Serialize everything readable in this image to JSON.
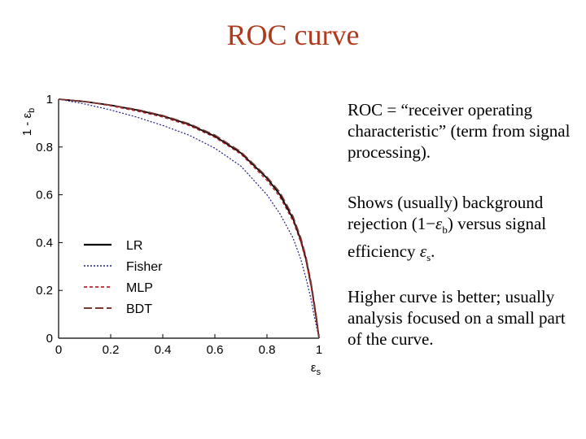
{
  "slide": {
    "title": "ROC curve"
  },
  "text": {
    "p1": "ROC = “receiver operating characteristic” (term from signal processing).",
    "p2_pre": "Shows (usually) background rejection (1−",
    "p2_eps": "ε",
    "p2_sub_b": "b",
    "p2_mid": ") versus signal efficiency ",
    "p2_eps2": "ε",
    "p2_sub_s": "s",
    "p2_post": ".",
    "p3": "Higher curve is better; usually analysis focused on a small part of the curve."
  },
  "colors": {
    "title": "#b03a1e",
    "lr": "#000000",
    "fisher": "#1c1c8c",
    "mlp": "#c0202a",
    "bdt": "#7a3a32"
  },
  "chart_data": {
    "type": "line",
    "title": "",
    "xlabel": "εs",
    "ylabel": "1 - εb",
    "xlim": [
      0,
      1
    ],
    "ylim": [
      0,
      1
    ],
    "xticks": [
      "0",
      "0.2",
      "0.4",
      "0.6",
      "0.8",
      "1"
    ],
    "yticks": [
      "0",
      "0.2",
      "0.4",
      "0.6",
      "0.8",
      "1"
    ],
    "legend_position": "lower-left",
    "series": [
      {
        "name": "LR",
        "style": "solid",
        "x": [
          0,
          0.1,
          0.2,
          0.3,
          0.4,
          0.5,
          0.6,
          0.7,
          0.8,
          0.85,
          0.9,
          0.93,
          0.95,
          0.97,
          0.98,
          0.99,
          1.0
        ],
        "y": [
          1.0,
          0.99,
          0.975,
          0.955,
          0.93,
          0.895,
          0.845,
          0.775,
          0.67,
          0.6,
          0.5,
          0.41,
          0.33,
          0.22,
          0.15,
          0.08,
          0.0
        ]
      },
      {
        "name": "Fisher",
        "style": "dotted",
        "x": [
          0,
          0.1,
          0.2,
          0.3,
          0.4,
          0.5,
          0.6,
          0.7,
          0.8,
          0.85,
          0.9,
          0.93,
          0.95,
          0.97,
          0.98,
          0.99,
          1.0
        ],
        "y": [
          1.0,
          0.98,
          0.955,
          0.925,
          0.89,
          0.85,
          0.795,
          0.72,
          0.6,
          0.52,
          0.42,
          0.33,
          0.25,
          0.16,
          0.1,
          0.05,
          0.0
        ]
      },
      {
        "name": "MLP",
        "style": "dashed",
        "x": [
          0,
          0.1,
          0.2,
          0.3,
          0.4,
          0.5,
          0.6,
          0.7,
          0.8,
          0.85,
          0.9,
          0.93,
          0.95,
          0.97,
          0.98,
          0.99,
          1.0
        ],
        "y": [
          1.0,
          0.99,
          0.972,
          0.95,
          0.925,
          0.89,
          0.84,
          0.77,
          0.66,
          0.59,
          0.49,
          0.4,
          0.32,
          0.21,
          0.14,
          0.07,
          0.0
        ]
      },
      {
        "name": "BDT",
        "style": "longdash",
        "x": [
          0,
          0.1,
          0.2,
          0.3,
          0.4,
          0.5,
          0.6,
          0.7,
          0.8,
          0.85,
          0.9,
          0.93,
          0.95,
          0.97,
          0.98,
          0.99,
          1.0
        ],
        "y": [
          1.0,
          0.99,
          0.975,
          0.957,
          0.932,
          0.898,
          0.85,
          0.78,
          0.675,
          0.61,
          0.51,
          0.42,
          0.34,
          0.23,
          0.16,
          0.09,
          0.0
        ]
      }
    ]
  }
}
